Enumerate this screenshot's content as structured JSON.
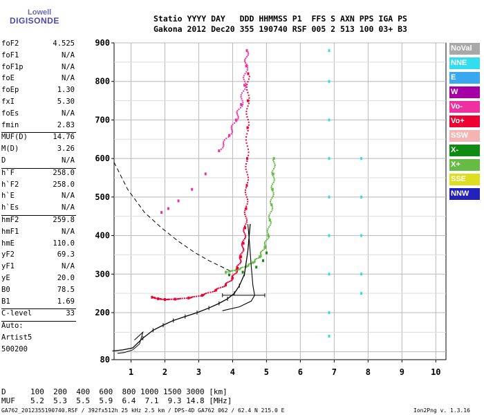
{
  "logo": {
    "top": "Lowell",
    "bottom": "DIGISONDE"
  },
  "header": {
    "line1": "Statio YYYY DAY   DDD HHMMSS P1  FFS S AXN PPS IGA PS",
    "line2": "Gakona 2012 Dec20 355 190740 RSF 005 2 513 100 03+ B3"
  },
  "params": [
    {
      "name": "foF2",
      "value": "4.525"
    },
    {
      "name": "foF1",
      "value": "N/A"
    },
    {
      "name": "foF1p",
      "value": "N/A"
    },
    {
      "name": "foE",
      "value": "N/A"
    },
    {
      "name": "foEp",
      "value": "1.30"
    },
    {
      "name": "fxI",
      "value": "5.30"
    },
    {
      "name": "foEs",
      "value": "N/A"
    },
    {
      "name": "fmin",
      "value": "2.83"
    },
    {
      "sep": true
    },
    {
      "name": "MUF(D)",
      "value": "14.76"
    },
    {
      "name": "M(D)",
      "value": "3.26"
    },
    {
      "name": "D",
      "value": "N/A"
    },
    {
      "sep": true
    },
    {
      "name": "h`F",
      "value": "258.0"
    },
    {
      "name": "h`F2",
      "value": "258.0"
    },
    {
      "name": "h`E",
      "value": "N/A"
    },
    {
      "name": "h`Es",
      "value": "N/A"
    },
    {
      "sep": true
    },
    {
      "name": "hmF2",
      "value": "259.8"
    },
    {
      "name": "hmF1",
      "value": "N/A"
    },
    {
      "name": "hmE",
      "value": "110.0"
    },
    {
      "name": "yF2",
      "value": "69.3"
    },
    {
      "name": "yF1",
      "value": "N/A"
    },
    {
      "name": "yE",
      "value": "20.0"
    },
    {
      "name": "B0",
      "value": "78.5"
    },
    {
      "name": "B1",
      "value": "1.69"
    },
    {
      "sep": true
    },
    {
      "name": "C-level",
      "value": "33"
    },
    {
      "sep": true
    },
    {
      "name": "Auto:",
      "value": ""
    },
    {
      "name": "Artist5",
      "value": ""
    },
    {
      "name": "500200",
      "value": ""
    }
  ],
  "legend": [
    {
      "label": "NoVal",
      "color": "#a8a8a8"
    },
    {
      "label": "NNE",
      "color": "#33ddee"
    },
    {
      "label": "E",
      "color": "#3aa8f0"
    },
    {
      "label": "W",
      "color": "#a400a4"
    },
    {
      "label": "Vo-",
      "color": "#f030a0"
    },
    {
      "label": "Vo+",
      "color": "#ee0030"
    },
    {
      "label": "SSW",
      "color": "#f4b4b4"
    },
    {
      "label": "X-",
      "color": "#108a10"
    },
    {
      "label": "X+",
      "color": "#66bb44"
    },
    {
      "label": "SSE",
      "color": "#dddd22"
    },
    {
      "label": "NNW",
      "color": "#2222bb"
    }
  ],
  "muf_table": {
    "d_label": "D",
    "d_values": "100  200  400  600  800 1000 1500 3000 [km]",
    "muf_label": "MUF",
    "muf_values": "5.2  5.3  5.5  5.9  6.4  7.1  9.3 14.8 [MHz]"
  },
  "footer": {
    "left": "GA762_2012355190740.RSF / 392fx512h 25 kHz 2.5 km / DPS-4D GA762 062 / 62.4 N 215.0 E",
    "right": "Ion2Png v. 1.3.16"
  },
  "chart_data": {
    "type": "scatter",
    "x_ticks": [
      1,
      2,
      3,
      4,
      5,
      6,
      7,
      8,
      9,
      10
    ],
    "y_ticks": [
      80,
      200,
      300,
      400,
      500,
      600,
      700,
      800,
      900
    ],
    "xlim": [
      0.5,
      10.3
    ],
    "ylim": [
      80,
      900
    ],
    "grid": true,
    "series": [
      {
        "color": "#ee0030",
        "points": [
          [
            1.62,
            240
          ],
          [
            1.8,
            236
          ],
          [
            2.0,
            234
          ],
          [
            2.3,
            235
          ],
          [
            2.7,
            238
          ],
          [
            3.1,
            245
          ],
          [
            3.5,
            258
          ],
          [
            3.8,
            272
          ],
          [
            4.0,
            290
          ],
          [
            4.15,
            315
          ],
          [
            4.25,
            345
          ],
          [
            4.32,
            380
          ],
          [
            4.37,
            420
          ],
          [
            4.4,
            470
          ],
          [
            4.42,
            530
          ],
          [
            4.43,
            600
          ],
          [
            4.44,
            680
          ],
          [
            4.45,
            750
          ],
          [
            4.46,
            820
          ]
        ]
      },
      {
        "color": "#f030a0",
        "points": [
          [
            3.6,
            620
          ],
          [
            3.9,
            660
          ],
          [
            4.1,
            700
          ],
          [
            4.25,
            740
          ],
          [
            4.35,
            790
          ],
          [
            4.4,
            840
          ],
          [
            4.42,
            880
          ],
          [
            3.2,
            560
          ],
          [
            2.8,
            520
          ],
          [
            2.4,
            490
          ],
          [
            2.1,
            470
          ],
          [
            1.9,
            460
          ]
        ]
      },
      {
        "color": "#66bb44",
        "points": [
          [
            3.8,
            305
          ],
          [
            4.1,
            310
          ],
          [
            4.4,
            320
          ],
          [
            4.6,
            330
          ],
          [
            4.8,
            345
          ],
          [
            4.95,
            370
          ],
          [
            5.05,
            400
          ],
          [
            5.1,
            440
          ],
          [
            5.15,
            480
          ],
          [
            5.18,
            520
          ],
          [
            5.2,
            560
          ],
          [
            5.22,
            600
          ]
        ]
      },
      {
        "color": "#108a10",
        "points": [
          [
            3.9,
            298
          ],
          [
            4.3,
            305
          ],
          [
            4.7,
            318
          ],
          [
            4.9,
            335
          ],
          [
            5.0,
            355
          ]
        ]
      },
      {
        "color": "#33ddee",
        "points": [
          [
            6.85,
            140
          ],
          [
            6.85,
            200
          ],
          [
            6.85,
            300
          ],
          [
            6.85,
            400
          ],
          [
            6.85,
            500
          ],
          [
            6.85,
            600
          ],
          [
            6.85,
            700
          ],
          [
            6.85,
            800
          ],
          [
            6.85,
            880
          ],
          [
            7.8,
            600
          ],
          [
            7.8,
            500
          ],
          [
            7.8,
            400
          ],
          [
            7.8,
            300
          ],
          [
            7.8,
            250
          ]
        ]
      }
    ],
    "profile_x": [
      0.45,
      0.75,
      1.05,
      1.35,
      1.65,
      1.95,
      2.25,
      2.6,
      2.95,
      3.3,
      3.6,
      3.85,
      4.05,
      4.2,
      4.35,
      4.45,
      4.52
    ],
    "profile_y": [
      102,
      105,
      110,
      135,
      155,
      168,
      180,
      190,
      200,
      212,
      224,
      236,
      250,
      270,
      300,
      360,
      430
    ]
  }
}
